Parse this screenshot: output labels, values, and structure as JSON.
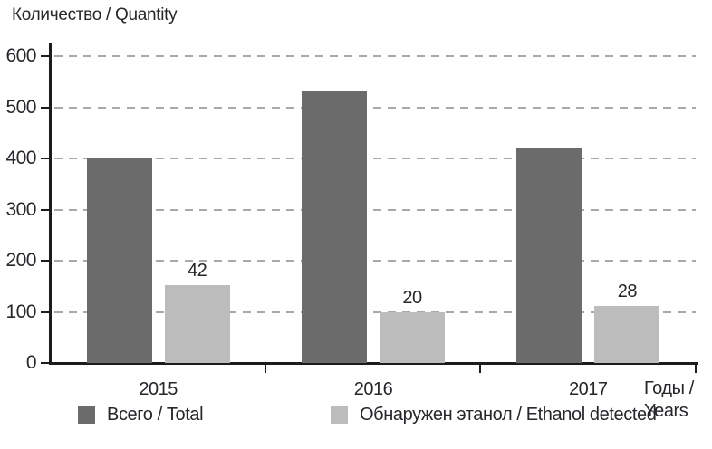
{
  "chart_data": {
    "type": "bar",
    "title": "Количество / Quantity",
    "categories": [
      "2015",
      "2016",
      "2017"
    ],
    "series": [
      {
        "name": "Всего / Total",
        "color": "#6b6b6b",
        "values": [
          400,
          532,
          419
        ]
      },
      {
        "name": "Обнаружен этанол / Ethanol detected",
        "color": "#bcbcbc",
        "values": [
          152,
          100,
          112
        ],
        "data_labels": [
          "42",
          "20",
          "28"
        ]
      }
    ],
    "xlabel": "Годы / Years",
    "ylabel": "Количество / Quantity",
    "ylim": [
      0,
      600
    ],
    "yticks": [
      0,
      100,
      200,
      300,
      400,
      500,
      600
    ],
    "grid": "horizontal-dashed",
    "legend_position": "bottom"
  },
  "xaxis_title": {
    "line1": "Годы /",
    "line2": "Years"
  },
  "legend": [
    {
      "label": "Всего / Total",
      "color": "#6b6b6b"
    },
    {
      "label": "Обнаружен этанол / Ethanol detected",
      "color": "#bcbcbc"
    }
  ],
  "colors": {
    "bar_total": "#6b6b6b",
    "bar_ethanol": "#bcbcbc",
    "axis": "#1c1c1e",
    "grid": "#a9a9a9",
    "text": "#26262b",
    "background": "#ffffff"
  }
}
